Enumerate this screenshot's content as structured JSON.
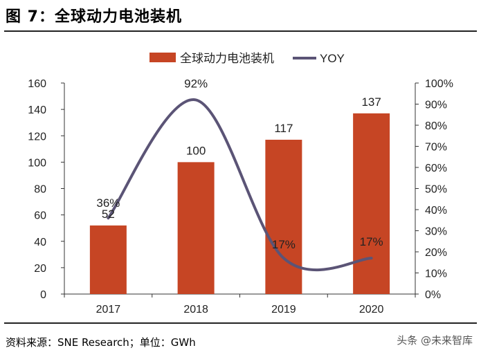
{
  "figure": {
    "title": "图 7：全球动力电池装机",
    "source": "资料来源：SNE Research；单位：GWh",
    "watermark": "头条 @未来智库"
  },
  "colors": {
    "bar": "#C64524",
    "line": "#5B5476",
    "axis": "#333333",
    "text": "#222222"
  },
  "chart_data": {
    "type": "bar",
    "categories": [
      "2017",
      "2018",
      "2019",
      "2020"
    ],
    "series": [
      {
        "name": "全球动力电池装机",
        "type": "bar",
        "axis": "left",
        "values": [
          52,
          100,
          117,
          137
        ],
        "labels": [
          "52",
          "100",
          "117",
          "137"
        ]
      },
      {
        "name": "YOY",
        "type": "line",
        "axis": "right",
        "values": [
          36,
          92,
          17,
          17
        ],
        "labels": [
          "36%",
          "92%",
          "17%",
          "17%"
        ]
      }
    ],
    "y_left": {
      "min": 0,
      "max": 160,
      "step": 20,
      "ticks": [
        "0",
        "20",
        "40",
        "60",
        "80",
        "100",
        "120",
        "140",
        "160"
      ]
    },
    "y_right": {
      "min": 0,
      "max": 100,
      "step": 10,
      "ticks": [
        "0%",
        "10%",
        "20%",
        "30%",
        "40%",
        "50%",
        "60%",
        "70%",
        "80%",
        "90%",
        "100%"
      ]
    },
    "legend_position": "top-center",
    "grid": false
  }
}
